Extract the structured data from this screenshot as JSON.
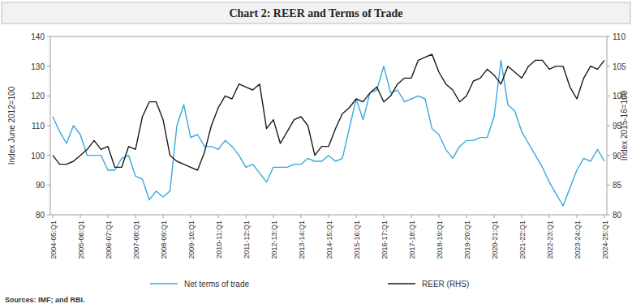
{
  "chart_data": {
    "type": "line",
    "title": "Chart 2: REER and Terms of Trade",
    "y_label": "Index June 2012=100",
    "y2_label": "Index 2015-16=100",
    "source": "Sources: IMF; and RBI.",
    "categories": [
      "2004-05:Q1",
      null,
      null,
      null,
      "2005-06:Q1",
      null,
      null,
      null,
      "2006-07:Q1",
      null,
      null,
      null,
      "2007-08:Q1",
      null,
      null,
      null,
      "2008-09:Q1",
      null,
      null,
      null,
      "2009-10:Q1",
      null,
      null,
      null,
      "2010-11:Q1",
      null,
      null,
      null,
      "2011-12:Q1",
      null,
      null,
      null,
      "2012-13:Q1",
      null,
      null,
      null,
      "2013-14:Q1",
      null,
      null,
      null,
      "2014-15:Q1",
      null,
      null,
      null,
      "2015-16:Q1",
      null,
      null,
      null,
      "2016-17:Q1",
      null,
      null,
      null,
      "2017-18:Q1",
      null,
      null,
      null,
      "2018-19:Q1",
      null,
      null,
      null,
      "2019-20:Q1",
      null,
      null,
      null,
      "2020-21:Q1",
      null,
      null,
      null,
      "2021-22:Q1",
      null,
      null,
      null,
      "2022-23:Q1",
      null,
      null,
      null,
      "2023-24:Q1",
      null,
      null,
      null,
      "2024-25:Q1"
    ],
    "series": [
      {
        "name": "Net terms of trade",
        "color": "#3aa8dc",
        "values": [
          113,
          108,
          104,
          110,
          107,
          100,
          100,
          100,
          95,
          95,
          99,
          100,
          93,
          92,
          85,
          88,
          86,
          88,
          110,
          117,
          106,
          107,
          103,
          103,
          102,
          105,
          103,
          100,
          96,
          97,
          94,
          91,
          96,
          96,
          96,
          97,
          97,
          99,
          98,
          98,
          100,
          98,
          99,
          109,
          119,
          112,
          121,
          122,
          130,
          121,
          122,
          118,
          119,
          120,
          119,
          109,
          107,
          102,
          99,
          103,
          105,
          105,
          106,
          106,
          113,
          132,
          117,
          115,
          108,
          104,
          100,
          96,
          91,
          87,
          83,
          89,
          95,
          99,
          98,
          102,
          98
        ]
      },
      {
        "name": "REER (RHS)",
        "color": "#1a1a1a",
        "axis": "y2",
        "values": [
          90,
          88.5,
          88.5,
          89,
          90,
          91,
          92.5,
          91,
          91.5,
          88,
          88,
          91.5,
          91,
          96.5,
          99,
          99,
          96,
          90,
          89,
          88.5,
          88,
          87.5,
          90.5,
          95,
          98,
          100,
          99.5,
          102,
          101.5,
          101,
          102,
          94.5,
          96,
          92,
          94,
          96,
          96.5,
          95,
          90,
          91.5,
          91.5,
          94.5,
          97,
          98,
          99.5,
          99,
          100.5,
          101.5,
          99,
          100,
          102,
          103,
          103,
          106,
          106.5,
          107,
          104,
          102,
          101,
          99,
          100,
          102.5,
          103,
          104.5,
          103.5,
          102,
          105,
          104,
          103,
          105,
          106,
          106,
          104.5,
          105,
          105,
          101.5,
          99.5,
          103,
          105,
          104.5,
          106
        ]
      }
    ],
    "ylim": [
      80,
      140
    ],
    "yticks": [
      80,
      90,
      100,
      110,
      120,
      130,
      140
    ],
    "y2lim": [
      80,
      110
    ],
    "y2ticks": [
      80,
      85,
      90,
      95,
      100,
      105,
      110
    ],
    "grid": false,
    "legend": "bottom"
  }
}
